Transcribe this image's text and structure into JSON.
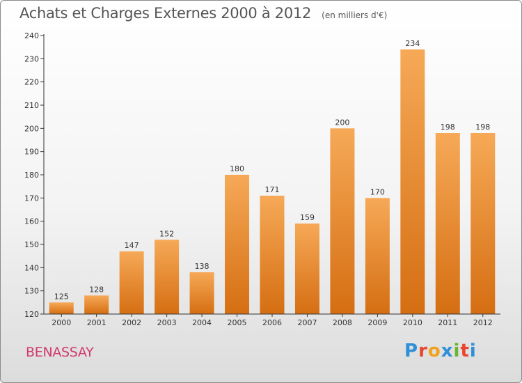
{
  "header": {
    "title": "Achats et Charges Externes 2000 à 2012",
    "subtitle": "(en milliers d'€)"
  },
  "footer": {
    "commune": "BENASSAY",
    "brand": "Proxiti",
    "brand_letters": [
      {
        "ch": "P",
        "color": "#2f8fd8"
      },
      {
        "ch": "r",
        "color": "#e8462d"
      },
      {
        "ch": "o",
        "color": "#f0a21c"
      },
      {
        "ch": "x",
        "color": "#2f8fd8"
      },
      {
        "ch": "i",
        "color": "#6bb52e"
      },
      {
        "ch": "t",
        "color": "#e8462d"
      },
      {
        "ch": "i",
        "color": "#2f8fd8"
      }
    ]
  },
  "chart_data": {
    "type": "bar",
    "title": "Achats et Charges Externes 2000 à 2012",
    "subtitle": "(en milliers d'€)",
    "categories": [
      "2000",
      "2001",
      "2002",
      "2003",
      "2004",
      "2005",
      "2006",
      "2007",
      "2008",
      "2009",
      "2010",
      "2011",
      "2012"
    ],
    "values": [
      125,
      128,
      147,
      152,
      138,
      180,
      171,
      159,
      200,
      170,
      234,
      198,
      198
    ],
    "ylim": [
      120,
      240
    ],
    "yticks": [
      120,
      130,
      140,
      150,
      160,
      170,
      180,
      190,
      200,
      210,
      220,
      230,
      240
    ],
    "grid": false,
    "data_labels": true,
    "colors": {
      "bar_top": "#f6a957",
      "bar_bottom": "#d56e12",
      "axis": "#333333",
      "text": "#333333"
    }
  }
}
